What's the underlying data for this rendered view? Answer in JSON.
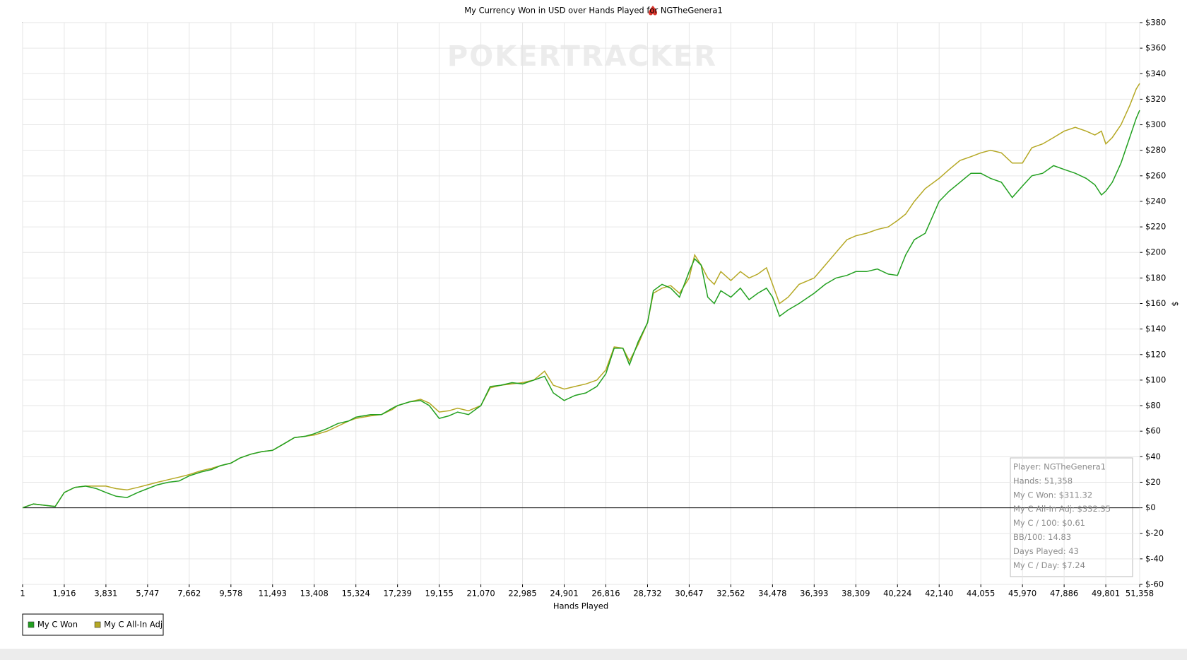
{
  "chart_data": {
    "type": "line",
    "title": "My Currency Won in USD over Hands Played for      NGTheGenera1",
    "watermark": "POKERTRACKER",
    "x_label": "Hands Played",
    "y_label": "$",
    "grid": true,
    "legend": "bottom-left",
    "xlim": [
      1,
      51358
    ],
    "ylim": [
      -60,
      380
    ],
    "xticks": [
      1,
      {
        "value": 1916,
        "label": "1,916"
      },
      {
        "value": 3831,
        "label": "3,831"
      },
      {
        "value": 5747,
        "label": "5,747"
      },
      {
        "value": 7662,
        "label": "7,662"
      },
      {
        "value": 9578,
        "label": "9,578"
      },
      {
        "value": 11493,
        "label": "11,493"
      },
      {
        "value": 13408,
        "label": "13,408"
      },
      {
        "value": 15324,
        "label": "15,324"
      },
      {
        "value": 17239,
        "label": "17,239"
      },
      {
        "value": 19155,
        "label": "19,155"
      },
      {
        "value": 21070,
        "label": "21,070"
      },
      {
        "value": 22985,
        "label": "22,985"
      },
      {
        "value": 24901,
        "label": "24,901"
      },
      {
        "value": 26816,
        "label": "26,816"
      },
      {
        "value": 28732,
        "label": "28,732"
      },
      {
        "value": 30647,
        "label": "30,647"
      },
      {
        "value": 32562,
        "label": "32,562"
      },
      {
        "value": 34478,
        "label": "34,478"
      },
      {
        "value": 36393,
        "label": "36,393"
      },
      {
        "value": 38309,
        "label": "38,309"
      },
      {
        "value": 40224,
        "label": "40,224"
      },
      {
        "value": 42140,
        "label": "42,140"
      },
      {
        "value": 44055,
        "label": "44,055"
      },
      {
        "value": 45970,
        "label": "45,970"
      },
      {
        "value": 47886,
        "label": "47,886"
      },
      {
        "value": 49801,
        "label": "49,801"
      },
      {
        "value": 51358,
        "label": "51,358"
      }
    ],
    "yticks": [
      {
        "value": -60,
        "label": "$-60"
      },
      {
        "value": -40,
        "label": "$-40"
      },
      {
        "value": -20,
        "label": "$-20"
      },
      {
        "value": 0,
        "label": "$0"
      },
      {
        "value": 20,
        "label": "$20"
      },
      {
        "value": 40,
        "label": "$40"
      },
      {
        "value": 60,
        "label": "$60"
      },
      {
        "value": 80,
        "label": "$80"
      },
      {
        "value": 100,
        "label": "$100"
      },
      {
        "value": 120,
        "label": "$120"
      },
      {
        "value": 140,
        "label": "$140"
      },
      {
        "value": 160,
        "label": "$160"
      },
      {
        "value": 180,
        "label": "$180"
      },
      {
        "value": 200,
        "label": "$200"
      },
      {
        "value": 220,
        "label": "$220"
      },
      {
        "value": 240,
        "label": "$240"
      },
      {
        "value": 260,
        "label": "$260"
      },
      {
        "value": 280,
        "label": "$280"
      },
      {
        "value": 300,
        "label": "$300"
      },
      {
        "value": 320,
        "label": "$320"
      },
      {
        "value": 340,
        "label": "$340"
      },
      {
        "value": 360,
        "label": "$360"
      },
      {
        "value": 380,
        "label": "$380"
      }
    ],
    "x": [
      1,
      500,
      1000,
      1500,
      1916,
      2400,
      2900,
      3400,
      3831,
      4300,
      4800,
      5300,
      5747,
      6200,
      6700,
      7200,
      7662,
      8200,
      8700,
      9100,
      9578,
      10000,
      10500,
      11000,
      11493,
      12000,
      12500,
      13000,
      13408,
      14000,
      14500,
      15000,
      15324,
      16000,
      16500,
      17000,
      17239,
      17800,
      18300,
      18700,
      19155,
      19600,
      20000,
      20500,
      21070,
      21500,
      22000,
      22500,
      22985,
      23500,
      24000,
      24400,
      24901,
      25400,
      25900,
      26400,
      26816,
      27200,
      27600,
      27900,
      28300,
      28732,
      29000,
      29400,
      29800,
      30200,
      30647,
      30900,
      31200,
      31500,
      31800,
      32100,
      32562,
      33000,
      33400,
      33800,
      34200,
      34478,
      34800,
      35200,
      35700,
      36393,
      36900,
      37400,
      37900,
      38309,
      38800,
      39300,
      39800,
      40224,
      40600,
      41000,
      41500,
      42140,
      42600,
      43100,
      43600,
      44055,
      44500,
      45000,
      45500,
      45970,
      46400,
      46900,
      47400,
      47886,
      48400,
      48900,
      49300,
      49600,
      49801,
      50100,
      50500,
      50900,
      51200,
      51358
    ],
    "series": [
      {
        "name": "My C Won",
        "color": "#22a020",
        "values": [
          0,
          3,
          2,
          1,
          12,
          16,
          17,
          15,
          12,
          9,
          8,
          12,
          15,
          18,
          20,
          21,
          25,
          28,
          30,
          33,
          35,
          39,
          42,
          44,
          45,
          50,
          55,
          56,
          58,
          62,
          66,
          68,
          71,
          73,
          73,
          78,
          80,
          83,
          84,
          80,
          70,
          72,
          75,
          73,
          80,
          95,
          96,
          98,
          97,
          100,
          103,
          90,
          84,
          88,
          90,
          95,
          105,
          125,
          125,
          112,
          130,
          145,
          170,
          175,
          172,
          165,
          185,
          195,
          190,
          165,
          160,
          170,
          165,
          172,
          163,
          168,
          172,
          165,
          150,
          155,
          160,
          168,
          175,
          180,
          182,
          185,
          185,
          187,
          183,
          182,
          198,
          210,
          215,
          240,
          248,
          255,
          262,
          262,
          258,
          255,
          243,
          252,
          260,
          262,
          268,
          265,
          262,
          258,
          253,
          245,
          248,
          255,
          270,
          290,
          305,
          311.32
        ]
      },
      {
        "name": "My C All-In Adj",
        "color": "#b5a824",
        "values": [
          0,
          3,
          2,
          1,
          12,
          16,
          17,
          17,
          17,
          15,
          14,
          16,
          18,
          20,
          22,
          24,
          26,
          29,
          31,
          33,
          35,
          39,
          42,
          44,
          45,
          50,
          55,
          56,
          57,
          60,
          64,
          68,
          70,
          72,
          73,
          77,
          80,
          83,
          85,
          82,
          75,
          76,
          78,
          76,
          80,
          94,
          96,
          97,
          98,
          100,
          107,
          96,
          93,
          95,
          97,
          100,
          108,
          126,
          125,
          115,
          128,
          145,
          168,
          172,
          174,
          168,
          180,
          198,
          190,
          180,
          175,
          185,
          178,
          185,
          180,
          183,
          188,
          175,
          160,
          165,
          175,
          180,
          190,
          200,
          210,
          213,
          215,
          218,
          220,
          225,
          230,
          240,
          250,
          258,
          265,
          272,
          275,
          278,
          280,
          278,
          270,
          270,
          282,
          285,
          290,
          295,
          298,
          295,
          292,
          295,
          285,
          290,
          300,
          315,
          328,
          332.35
        ]
      }
    ],
    "info_box": [
      "Player: NGTheGenera1",
      "Hands: 51,358",
      "My C Won: $311.32",
      "My C All-In Adj: $332.35",
      "My C / 100: $0.61",
      "BB/100: 14.83",
      "Days Played: 43",
      "My C / Day: $7.24"
    ]
  }
}
